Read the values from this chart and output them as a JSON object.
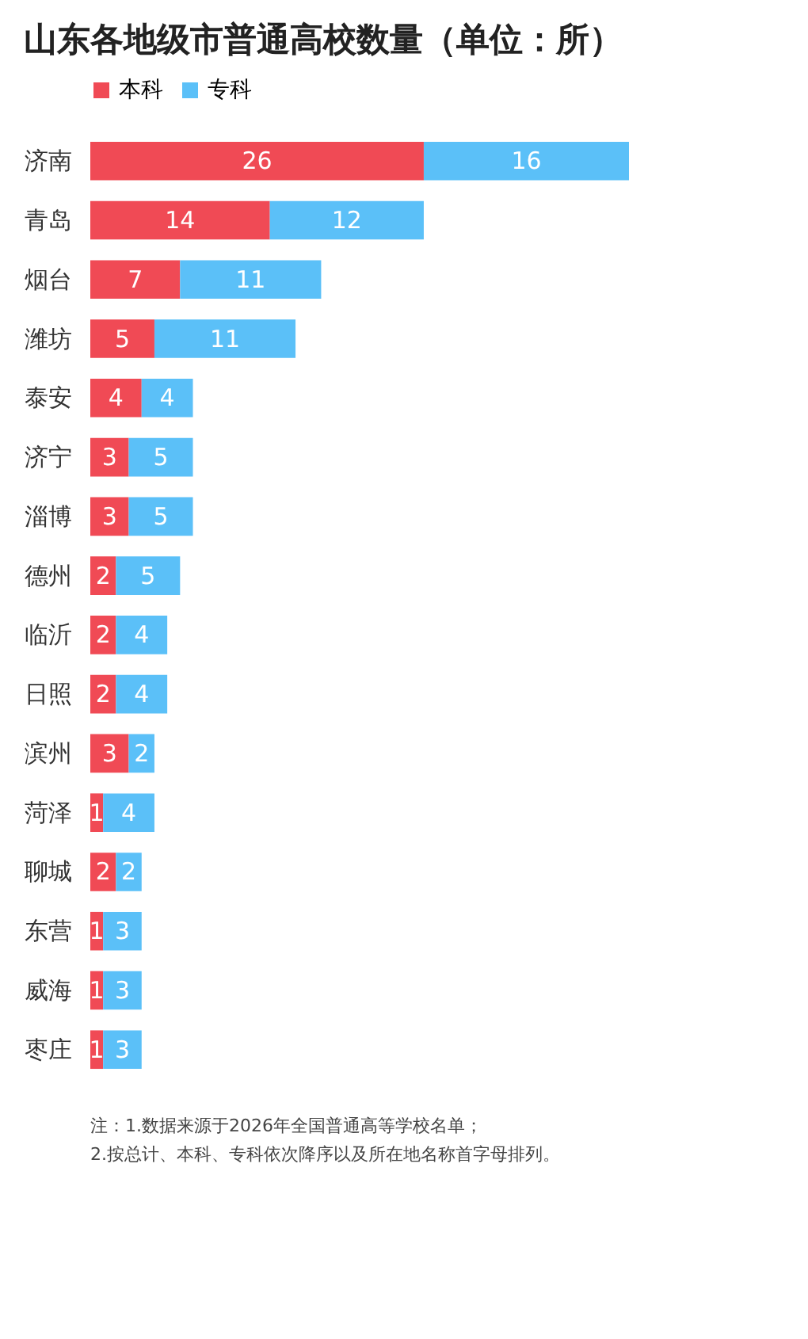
{
  "chart_data": {
    "type": "bar",
    "orientation": "horizontal",
    "stacked": true,
    "title": "山东各地级市普通高校数量（单位：所）",
    "categories": [
      "济南",
      "青岛",
      "烟台",
      "潍坊",
      "泰安",
      "济宁",
      "淄博",
      "德州",
      "临沂",
      "日照",
      "滨州",
      "菏泽",
      "聊城",
      "东营",
      "威海",
      "枣庄"
    ],
    "series": [
      {
        "name": "本科",
        "color": "#f04a55",
        "values": [
          26,
          14,
          7,
          5,
          4,
          3,
          3,
          2,
          2,
          2,
          3,
          1,
          2,
          1,
          1,
          1
        ]
      },
      {
        "name": "专科",
        "color": "#5bc0f8",
        "values": [
          16,
          12,
          11,
          11,
          4,
          5,
          5,
          5,
          4,
          4,
          2,
          4,
          2,
          3,
          3,
          3
        ]
      }
    ],
    "data_labels": true,
    "legend": "top",
    "annotations": [
      "注：1.数据来源于2026年全国普通高等学校名单；",
      "2.按总计、本科、专科依次降序以及所在地名称首字母排列。"
    ]
  }
}
